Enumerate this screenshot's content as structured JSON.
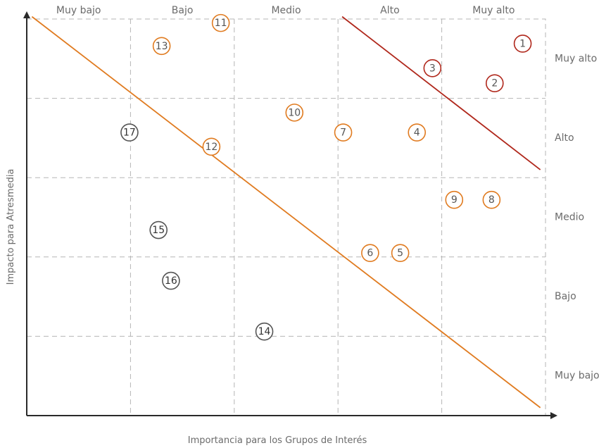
{
  "chart_data": {
    "type": "scatter",
    "xlabel": "Importancia para los Grupos de Interés",
    "ylabel": "Impacto para Atresmedia",
    "x_categories": [
      "Muy bajo",
      "Bajo",
      "Medio",
      "Alto",
      "Muy alto"
    ],
    "y_categories": [
      "Muy bajo",
      "Bajo",
      "Medio",
      "Alto",
      "Muy alto"
    ],
    "xlim": [
      0,
      5
    ],
    "ylim": [
      0,
      5
    ],
    "grid": true,
    "colors": {
      "orange": "#e07b20",
      "red": "#b0281c",
      "gray": "#555555"
    },
    "points": [
      {
        "label": "1",
        "x": 4.78,
        "y": 4.69,
        "color": "red"
      },
      {
        "label": "2",
        "x": 4.51,
        "y": 4.19,
        "color": "red"
      },
      {
        "label": "3",
        "x": 3.91,
        "y": 4.38,
        "color": "red"
      },
      {
        "label": "4",
        "x": 3.76,
        "y": 3.57,
        "color": "orange"
      },
      {
        "label": "5",
        "x": 3.6,
        "y": 2.05,
        "color": "orange"
      },
      {
        "label": "6",
        "x": 3.31,
        "y": 2.05,
        "color": "orange"
      },
      {
        "label": "7",
        "x": 3.05,
        "y": 3.57,
        "color": "orange"
      },
      {
        "label": "8",
        "x": 4.48,
        "y": 2.72,
        "color": "orange"
      },
      {
        "label": "9",
        "x": 4.12,
        "y": 2.72,
        "color": "orange"
      },
      {
        "label": "10",
        "x": 2.58,
        "y": 3.82,
        "color": "orange"
      },
      {
        "label": "11",
        "x": 1.87,
        "y": 4.95,
        "color": "orange"
      },
      {
        "label": "12",
        "x": 1.78,
        "y": 3.39,
        "color": "orange"
      },
      {
        "label": "13",
        "x": 1.3,
        "y": 4.66,
        "color": "orange"
      },
      {
        "label": "14",
        "x": 2.29,
        "y": 1.06,
        "color": "gray"
      },
      {
        "label": "15",
        "x": 1.27,
        "y": 2.34,
        "color": "gray"
      },
      {
        "label": "16",
        "x": 1.39,
        "y": 1.7,
        "color": "gray"
      },
      {
        "label": "17",
        "x": 0.99,
        "y": 3.57,
        "color": "gray"
      }
    ],
    "lines": [
      {
        "color": "orange",
        "from": [
          0.05,
          5.03
        ],
        "to": [
          4.95,
          0.1
        ]
      },
      {
        "color": "red",
        "from": [
          3.04,
          5.03
        ],
        "to": [
          4.95,
          3.1
        ]
      }
    ]
  }
}
